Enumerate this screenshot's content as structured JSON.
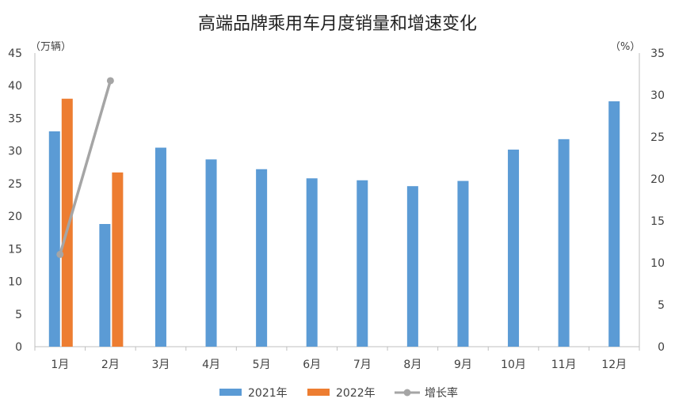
{
  "chart_data": {
    "type": "bar",
    "title": "高端品牌乘用车月度销量和增速变化",
    "left_unit": "（万辆）",
    "right_unit": "（%）",
    "categories": [
      "1月",
      "2月",
      "3月",
      "4月",
      "5月",
      "6月",
      "7月",
      "8月",
      "9月",
      "10月",
      "11月",
      "12月"
    ],
    "ylim_left": [
      0,
      45
    ],
    "yticks_left": [
      "0",
      "5",
      "10",
      "15",
      "20",
      "25",
      "30",
      "35",
      "40",
      "45"
    ],
    "ylim_right": [
      0,
      35
    ],
    "yticks_right": [
      "0",
      "5",
      "10",
      "15",
      "20",
      "25",
      "30",
      "35"
    ],
    "grid": false,
    "legend_position": "bottom",
    "series": [
      {
        "name": "2021年",
        "type": "bar",
        "axis": "left",
        "color": "#5B9BD5",
        "values": [
          33.0,
          18.8,
          30.5,
          28.7,
          27.2,
          25.8,
          25.5,
          24.6,
          25.4,
          30.2,
          31.8,
          37.6
        ]
      },
      {
        "name": "2022年",
        "type": "bar",
        "axis": "left",
        "color": "#ED7D31",
        "values": [
          38.0,
          26.7,
          null,
          null,
          null,
          null,
          null,
          null,
          null,
          null,
          null,
          null
        ]
      },
      {
        "name": "增长率",
        "type": "line",
        "axis": "right",
        "color": "#A5A5A5",
        "values": [
          11.0,
          31.7,
          null,
          null,
          null,
          null,
          null,
          null,
          null,
          null,
          null,
          null
        ]
      }
    ]
  }
}
